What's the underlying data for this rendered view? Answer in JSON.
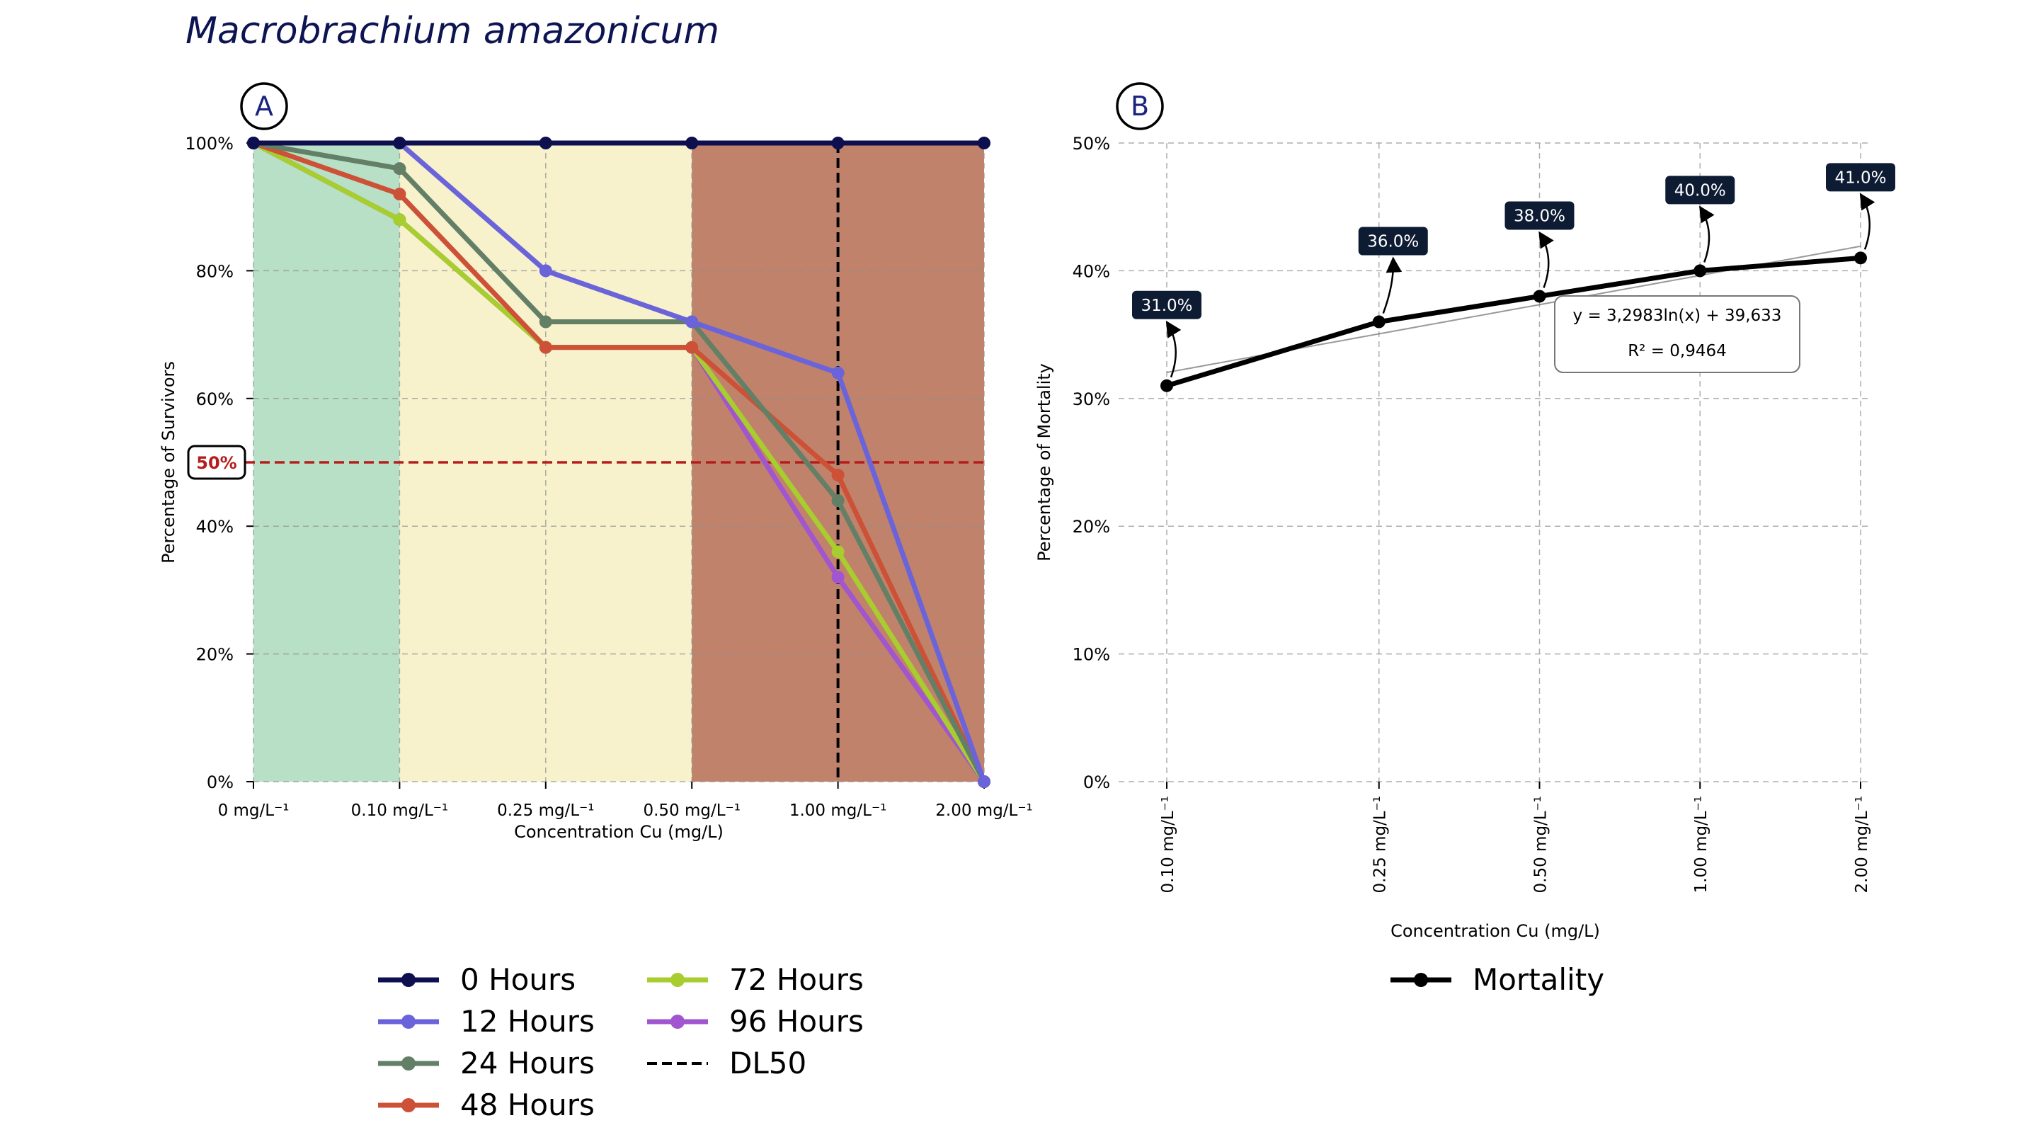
{
  "title": "Macrobrachium amazonicum",
  "chart_data": [
    {
      "type": "line",
      "panel_label": "A",
      "categories": [
        "0 mg/L⁻¹",
        "0.10 mg/L⁻¹",
        "0.25 mg/L⁻¹",
        "0.50 mg/L⁻¹",
        "1.00 mg/L⁻¹",
        "2.00 mg/L⁻¹"
      ],
      "xlabel": "Concentration Cu (mg/L)",
      "ylabel": "Percentage of Survivors",
      "ylim": [
        0,
        100
      ],
      "yticks": [
        "0%",
        "20%",
        "40%",
        "60%",
        "80%",
        "100%"
      ],
      "grid": true,
      "series": [
        {
          "name": "0 Hours",
          "color": "#0d0f4f",
          "values": [
            100,
            100,
            100,
            100,
            100,
            100
          ]
        },
        {
          "name": "12 Hours",
          "color": "#6a63da",
          "values": [
            100,
            100,
            80,
            72,
            64,
            0
          ]
        },
        {
          "name": "24 Hours",
          "color": "#637f66",
          "values": [
            100,
            96,
            72,
            72,
            44,
            0
          ]
        },
        {
          "name": "48 Hours",
          "color": "#cc5136",
          "values": [
            100,
            92,
            68,
            68,
            48,
            0
          ]
        },
        {
          "name": "72 Hours",
          "color": "#a8cd2e",
          "values": [
            100,
            88,
            68,
            68,
            36,
            0
          ]
        },
        {
          "name": "96 Hours",
          "color": "#a155cf",
          "values": [
            100,
            88,
            68,
            68,
            32,
            0
          ]
        }
      ],
      "background_bands": [
        {
          "from": 0,
          "to": 1,
          "color": "#b7e0c6"
        },
        {
          "from": 1,
          "to": 3,
          "color": "#f7f2cc"
        },
        {
          "from": 3,
          "to": 5,
          "color": "#c0826a"
        }
      ],
      "threshold": {
        "label": "50%",
        "value": 50,
        "color": "#b71c1c"
      },
      "dl50": {
        "name": "DL50",
        "category_index": 4
      },
      "legend": {
        "placement": "bottom",
        "items": [
          "0 Hours",
          "72 Hours",
          "12 Hours",
          "96 Hours",
          "24 Hours",
          "DL50",
          "48 Hours"
        ]
      }
    },
    {
      "type": "line",
      "panel_label": "B",
      "x": [
        0.1,
        0.25,
        0.5,
        1.0,
        2.0
      ],
      "xticks": [
        "0.10 mg/L⁻¹",
        "0.25 mg/L⁻¹",
        "0.50 mg/L⁻¹",
        "1.00 mg/L⁻¹",
        "2.00 mg/L⁻¹"
      ],
      "xlabel": "Concentration Cu (mg/L)",
      "ylabel": "Percentage of Mortality",
      "ylim": [
        0,
        50
      ],
      "yticks": [
        "0%",
        "10%",
        "20%",
        "30%",
        "40%",
        "50%"
      ],
      "grid": true,
      "series": [
        {
          "name": "Mortality",
          "color": "#000000",
          "values": [
            31,
            36,
            38,
            40,
            41
          ]
        }
      ],
      "data_labels": [
        "31.0%",
        "36.0%",
        "38.0%",
        "40.0%",
        "41.0%"
      ],
      "equation": "y = 3,2983ln(x) + 39,633",
      "r_squared": "R² = 0,9464",
      "legend": {
        "placement": "bottom",
        "items": [
          "Mortality"
        ]
      }
    }
  ]
}
